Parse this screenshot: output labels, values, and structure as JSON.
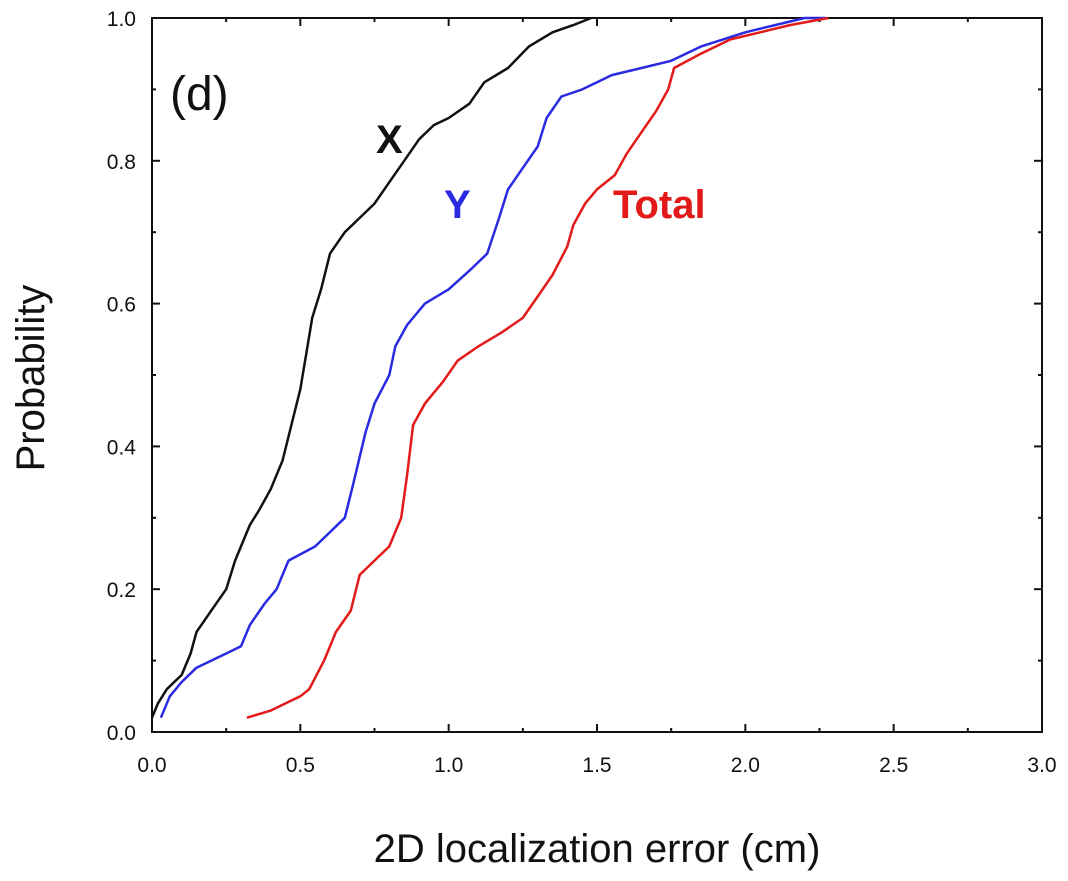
{
  "chart_data": {
    "type": "line",
    "panel_label": "(d)",
    "xlabel": "2D localization error (cm)",
    "ylabel": "Probability",
    "xlim": [
      0,
      3
    ],
    "ylim": [
      0,
      1
    ],
    "xticks": [
      "0.0",
      "0.5",
      "1.0",
      "1.5",
      "2.0",
      "2.5",
      "3.0"
    ],
    "yticks": [
      "0.0",
      "0.2",
      "0.4",
      "0.6",
      "0.8",
      "1.0"
    ],
    "grid": false,
    "series": [
      {
        "name": "X",
        "color": "#111111",
        "points": [
          [
            0.0,
            0.02
          ],
          [
            0.02,
            0.04
          ],
          [
            0.05,
            0.06
          ],
          [
            0.1,
            0.08
          ],
          [
            0.13,
            0.11
          ],
          [
            0.15,
            0.14
          ],
          [
            0.2,
            0.17
          ],
          [
            0.25,
            0.2
          ],
          [
            0.28,
            0.24
          ],
          [
            0.3,
            0.26
          ],
          [
            0.33,
            0.29
          ],
          [
            0.36,
            0.31
          ],
          [
            0.4,
            0.34
          ],
          [
            0.44,
            0.38
          ],
          [
            0.47,
            0.43
          ],
          [
            0.5,
            0.48
          ],
          [
            0.52,
            0.53
          ],
          [
            0.54,
            0.58
          ],
          [
            0.57,
            0.62
          ],
          [
            0.6,
            0.67
          ],
          [
            0.65,
            0.7
          ],
          [
            0.7,
            0.72
          ],
          [
            0.75,
            0.74
          ],
          [
            0.8,
            0.77
          ],
          [
            0.85,
            0.8
          ],
          [
            0.9,
            0.83
          ],
          [
            0.95,
            0.85
          ],
          [
            1.0,
            0.86
          ],
          [
            1.07,
            0.88
          ],
          [
            1.12,
            0.91
          ],
          [
            1.2,
            0.93
          ],
          [
            1.27,
            0.96
          ],
          [
            1.35,
            0.98
          ],
          [
            1.42,
            0.99
          ],
          [
            1.48,
            1.0
          ]
        ]
      },
      {
        "name": "Y",
        "color": "#2a2ae0",
        "points": [
          [
            0.03,
            0.02
          ],
          [
            0.06,
            0.05
          ],
          [
            0.1,
            0.07
          ],
          [
            0.15,
            0.09
          ],
          [
            0.2,
            0.1
          ],
          [
            0.25,
            0.11
          ],
          [
            0.3,
            0.12
          ],
          [
            0.33,
            0.15
          ],
          [
            0.38,
            0.18
          ],
          [
            0.42,
            0.2
          ],
          [
            0.46,
            0.24
          ],
          [
            0.55,
            0.26
          ],
          [
            0.6,
            0.28
          ],
          [
            0.65,
            0.3
          ],
          [
            0.68,
            0.35
          ],
          [
            0.72,
            0.42
          ],
          [
            0.75,
            0.46
          ],
          [
            0.8,
            0.5
          ],
          [
            0.82,
            0.54
          ],
          [
            0.86,
            0.57
          ],
          [
            0.92,
            0.6
          ],
          [
            1.0,
            0.62
          ],
          [
            1.08,
            0.65
          ],
          [
            1.13,
            0.67
          ],
          [
            1.17,
            0.72
          ],
          [
            1.2,
            0.76
          ],
          [
            1.25,
            0.79
          ],
          [
            1.3,
            0.82
          ],
          [
            1.33,
            0.86
          ],
          [
            1.38,
            0.89
          ],
          [
            1.45,
            0.9
          ],
          [
            1.55,
            0.92
          ],
          [
            1.65,
            0.93
          ],
          [
            1.75,
            0.94
          ],
          [
            1.85,
            0.96
          ],
          [
            2.0,
            0.98
          ],
          [
            2.1,
            0.99
          ],
          [
            2.2,
            1.0
          ],
          [
            2.27,
            1.0
          ]
        ]
      },
      {
        "name": "Total",
        "color": "#e21a1a",
        "points": [
          [
            0.32,
            0.02
          ],
          [
            0.4,
            0.03
          ],
          [
            0.45,
            0.04
          ],
          [
            0.5,
            0.05
          ],
          [
            0.53,
            0.06
          ],
          [
            0.58,
            0.1
          ],
          [
            0.62,
            0.14
          ],
          [
            0.67,
            0.17
          ],
          [
            0.7,
            0.22
          ],
          [
            0.75,
            0.24
          ],
          [
            0.8,
            0.26
          ],
          [
            0.84,
            0.3
          ],
          [
            0.86,
            0.36
          ],
          [
            0.88,
            0.43
          ],
          [
            0.92,
            0.46
          ],
          [
            0.98,
            0.49
          ],
          [
            1.03,
            0.52
          ],
          [
            1.1,
            0.54
          ],
          [
            1.18,
            0.56
          ],
          [
            1.25,
            0.58
          ],
          [
            1.3,
            0.61
          ],
          [
            1.35,
            0.64
          ],
          [
            1.4,
            0.68
          ],
          [
            1.42,
            0.71
          ],
          [
            1.46,
            0.74
          ],
          [
            1.5,
            0.76
          ],
          [
            1.56,
            0.78
          ],
          [
            1.6,
            0.81
          ],
          [
            1.65,
            0.84
          ],
          [
            1.7,
            0.87
          ],
          [
            1.74,
            0.9
          ],
          [
            1.76,
            0.93
          ],
          [
            1.85,
            0.95
          ],
          [
            1.95,
            0.97
          ],
          [
            2.05,
            0.98
          ],
          [
            2.15,
            0.99
          ],
          [
            2.28,
            1.0
          ]
        ]
      }
    ]
  }
}
